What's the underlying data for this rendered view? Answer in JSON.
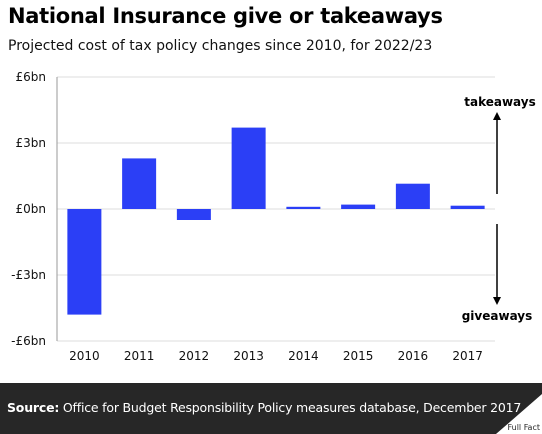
{
  "header": {
    "title": "National Insurance give or takeaways",
    "subtitle": "Projected cost of tax policy changes since 2010, for 2022/23"
  },
  "footer": {
    "source_label": "Source:",
    "source_text": "Office for Budget Responsibility Policy measures database, December 2017",
    "logo_text": "Full Fact"
  },
  "colors": {
    "bar": "#2b3ff6",
    "grid": "#dcdcdc",
    "footer_bg": "#272727"
  },
  "chart_data": {
    "type": "bar",
    "categories": [
      "2010",
      "2011",
      "2012",
      "2013",
      "2014",
      "2015",
      "2016",
      "2017"
    ],
    "values": [
      -4.8,
      2.3,
      -0.5,
      3.7,
      0.1,
      0.2,
      1.15,
      0.15
    ],
    "y_ticks": [
      {
        "value": 6,
        "label": "£6bn"
      },
      {
        "value": 3,
        "label": "£3bn"
      },
      {
        "value": 0,
        "label": "£0bn"
      },
      {
        "value": -3,
        "label": "-£3bn"
      },
      {
        "value": -6,
        "label": "-£6bn"
      }
    ],
    "ylim": [
      -6,
      6
    ],
    "grid": true,
    "annotations": {
      "up_label": "takeaways",
      "down_label": "giveaways"
    }
  }
}
